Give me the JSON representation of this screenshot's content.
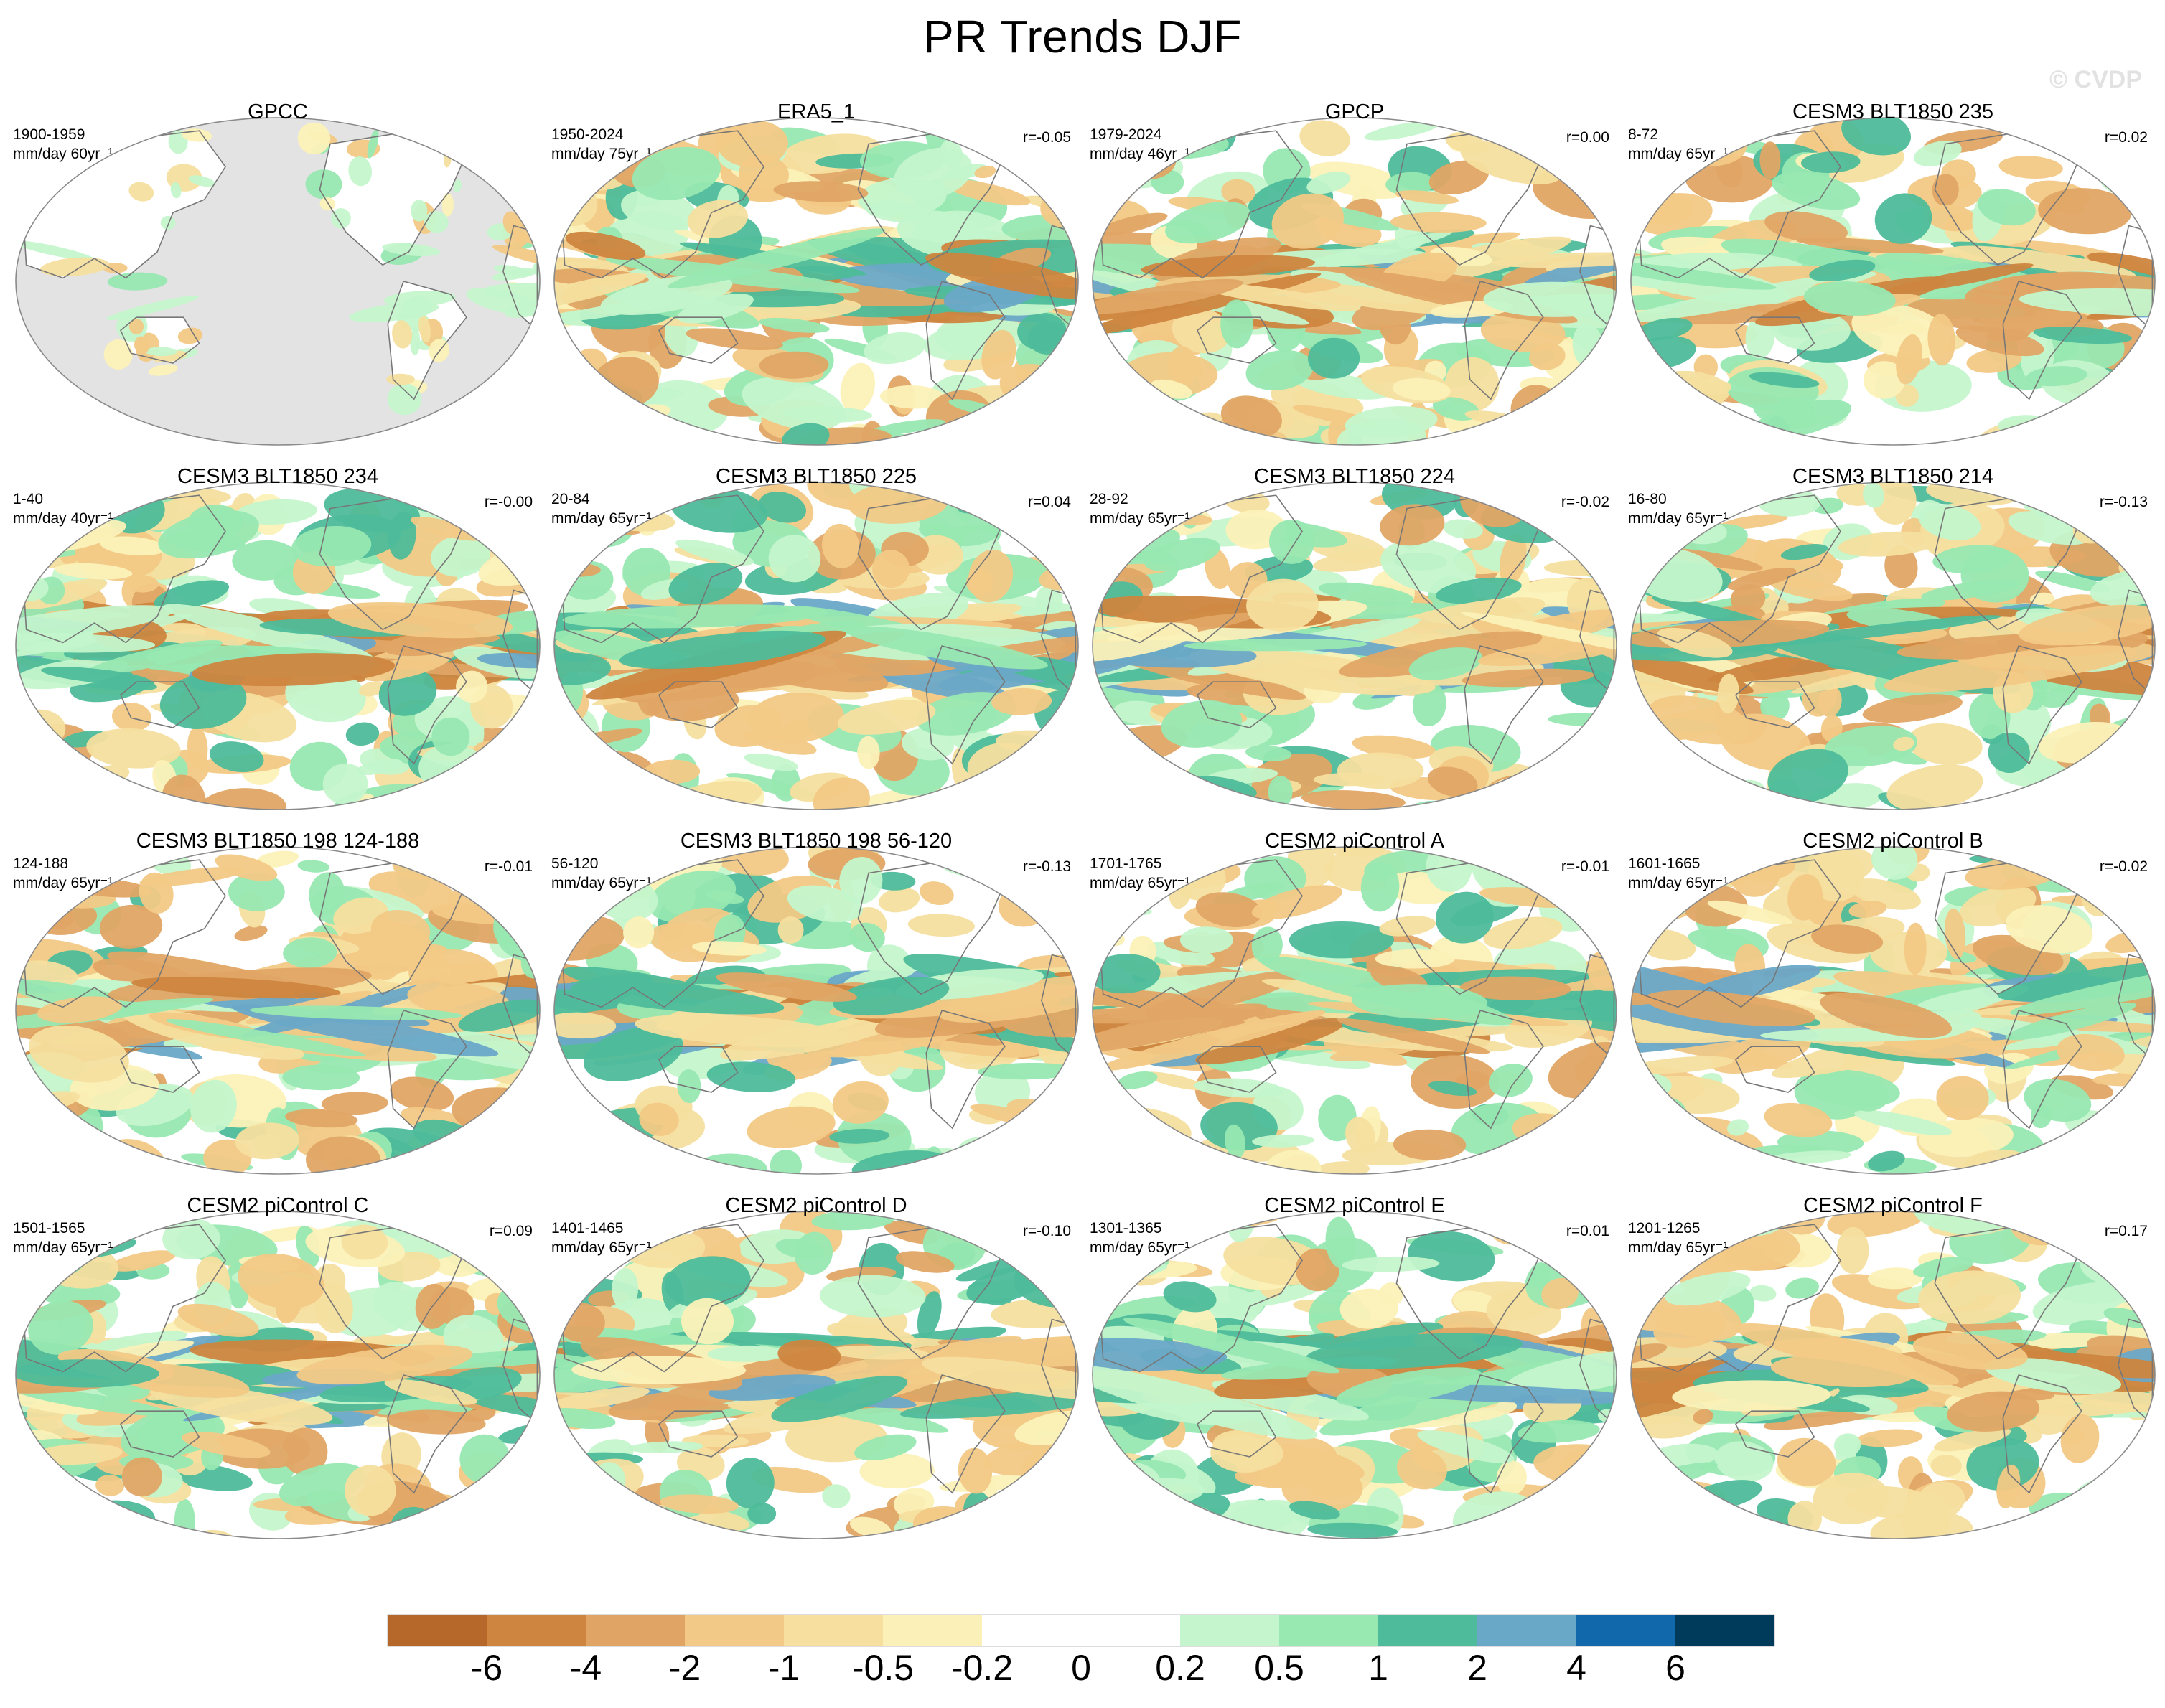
{
  "title": "PR Trends DJF",
  "watermark": "© CVDP",
  "colorbar": {
    "levels": [
      "-6",
      "-4",
      "-2",
      "-1",
      "-0.5",
      "-0.2",
      "0",
      "0.2",
      "0.5",
      "1",
      "2",
      "4",
      "6"
    ],
    "colors": [
      "#b5682a",
      "#cd853f",
      "#e0a565",
      "#f2c986",
      "#f6df9f",
      "#fbf1b8",
      "#ffffff",
      "#ffffff",
      "#c4f5cc",
      "#98e8b2",
      "#4ebc9a",
      "#6aa8c8",
      "#1168aa",
      "#003b5c"
    ]
  },
  "colors": {
    "land_mask": "#e3e3e3",
    "coast": "#777777",
    "outline": "#8a8a8a"
  },
  "panels": [
    {
      "title": "GPCC",
      "period": "1900-1959",
      "units": "mm/day 60yr⁻¹",
      "corr": "",
      "masked": true
    },
    {
      "title": "ERA5_1",
      "period": "1950-2024",
      "units": "mm/day 75yr⁻¹",
      "corr": "r=-0.05"
    },
    {
      "title": "GPCP",
      "period": "1979-2024",
      "units": "mm/day 46yr⁻¹",
      "corr": "r=0.00"
    },
    {
      "title": "CESM3 BLT1850 235",
      "period": "8-72",
      "units": "mm/day 65yr⁻¹",
      "corr": "r=0.02"
    },
    {
      "title": "CESM3 BLT1850 234",
      "period": "1-40",
      "units": "mm/day 40yr⁻¹",
      "corr": "r=-0.00"
    },
    {
      "title": "CESM3 BLT1850 225",
      "period": "20-84",
      "units": "mm/day 65yr⁻¹",
      "corr": "r=0.04"
    },
    {
      "title": "CESM3 BLT1850 224",
      "period": "28-92",
      "units": "mm/day 65yr⁻¹",
      "corr": "r=-0.02"
    },
    {
      "title": "CESM3 BLT1850 214",
      "period": "16-80",
      "units": "mm/day 65yr⁻¹",
      "corr": "r=-0.13"
    },
    {
      "title": "CESM3 BLT1850 198 124-188",
      "period": "124-188",
      "units": "mm/day 65yr⁻¹",
      "corr": "r=-0.01"
    },
    {
      "title": "CESM3 BLT1850 198 56-120",
      "period": "56-120",
      "units": "mm/day 65yr⁻¹",
      "corr": "r=-0.13"
    },
    {
      "title": "CESM2 piControl A",
      "period": "1701-1765",
      "units": "mm/day 65yr⁻¹",
      "corr": "r=-0.01"
    },
    {
      "title": "CESM2 piControl B",
      "period": "1601-1665",
      "units": "mm/day 65yr⁻¹",
      "corr": "r=-0.02"
    },
    {
      "title": "CESM2 piControl C",
      "period": "1501-1565",
      "units": "mm/day 65yr⁻¹",
      "corr": "r=0.09"
    },
    {
      "title": "CESM2 piControl D",
      "period": "1401-1465",
      "units": "mm/day 65yr⁻¹",
      "corr": "r=-0.10"
    },
    {
      "title": "CESM2 piControl E",
      "period": "1301-1365",
      "units": "mm/day 65yr⁻¹",
      "corr": "r=0.01"
    },
    {
      "title": "CESM2 piControl F",
      "period": "1201-1265",
      "units": "mm/day 65yr⁻¹",
      "corr": "r=0.17"
    }
  ]
}
